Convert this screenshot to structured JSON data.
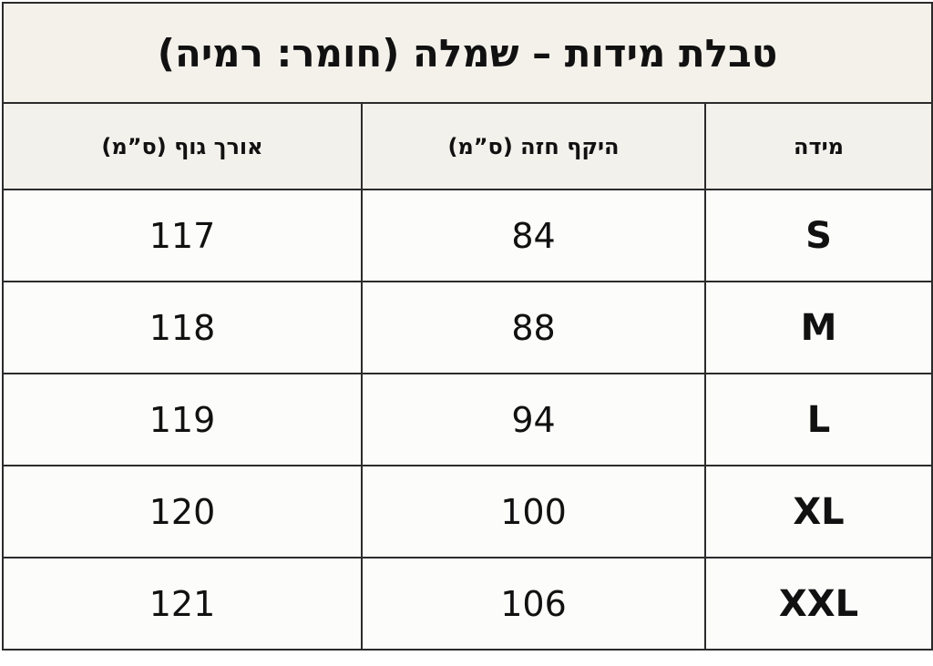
{
  "header": {
    "title": "טבלת מידות – שמלה (חומר: רמיה)"
  },
  "table": {
    "columns": [
      "מידה",
      "היקף חזה (ס”מ)",
      "אורך גוף (ס”מ)"
    ],
    "rows": [
      [
        "S",
        84,
        117
      ],
      [
        "M",
        88,
        118
      ],
      [
        "L",
        94,
        119
      ],
      [
        "XL",
        100,
        120
      ],
      [
        "XXL",
        106,
        121
      ]
    ]
  }
}
